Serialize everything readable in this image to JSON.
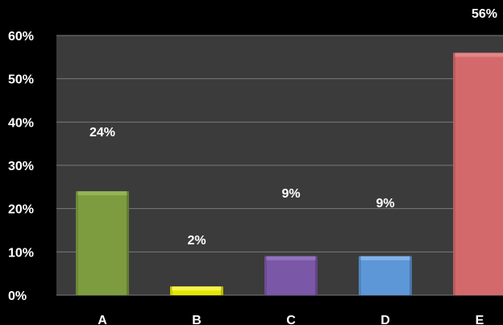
{
  "chart_data": {
    "type": "bar",
    "categories": [
      "A",
      "B",
      "C",
      "D",
      "E"
    ],
    "values": [
      24,
      2,
      9,
      9,
      56
    ],
    "data_labels": [
      "24%",
      "2%",
      "9%",
      "9%",
      "56%"
    ],
    "y_ticks": [
      "0%",
      "10%",
      "20%",
      "30%",
      "40%",
      "50%",
      "60%"
    ],
    "ylim": [
      0,
      60
    ],
    "grid": true,
    "legend": "none",
    "title": "",
    "xlabel": "",
    "ylabel": ""
  },
  "colors": {
    "background": "#000000",
    "plot_area": "#3b3b3b",
    "gridline": "#7a7a7a",
    "bars": [
      "#7d9c3f",
      "#e5e500",
      "#7b57a7",
      "#5d97d8",
      "#d4696b"
    ],
    "bar_tops": [
      "#97b857",
      "#f5f55a",
      "#9477c2",
      "#86b6ec",
      "#e58a8b"
    ]
  }
}
